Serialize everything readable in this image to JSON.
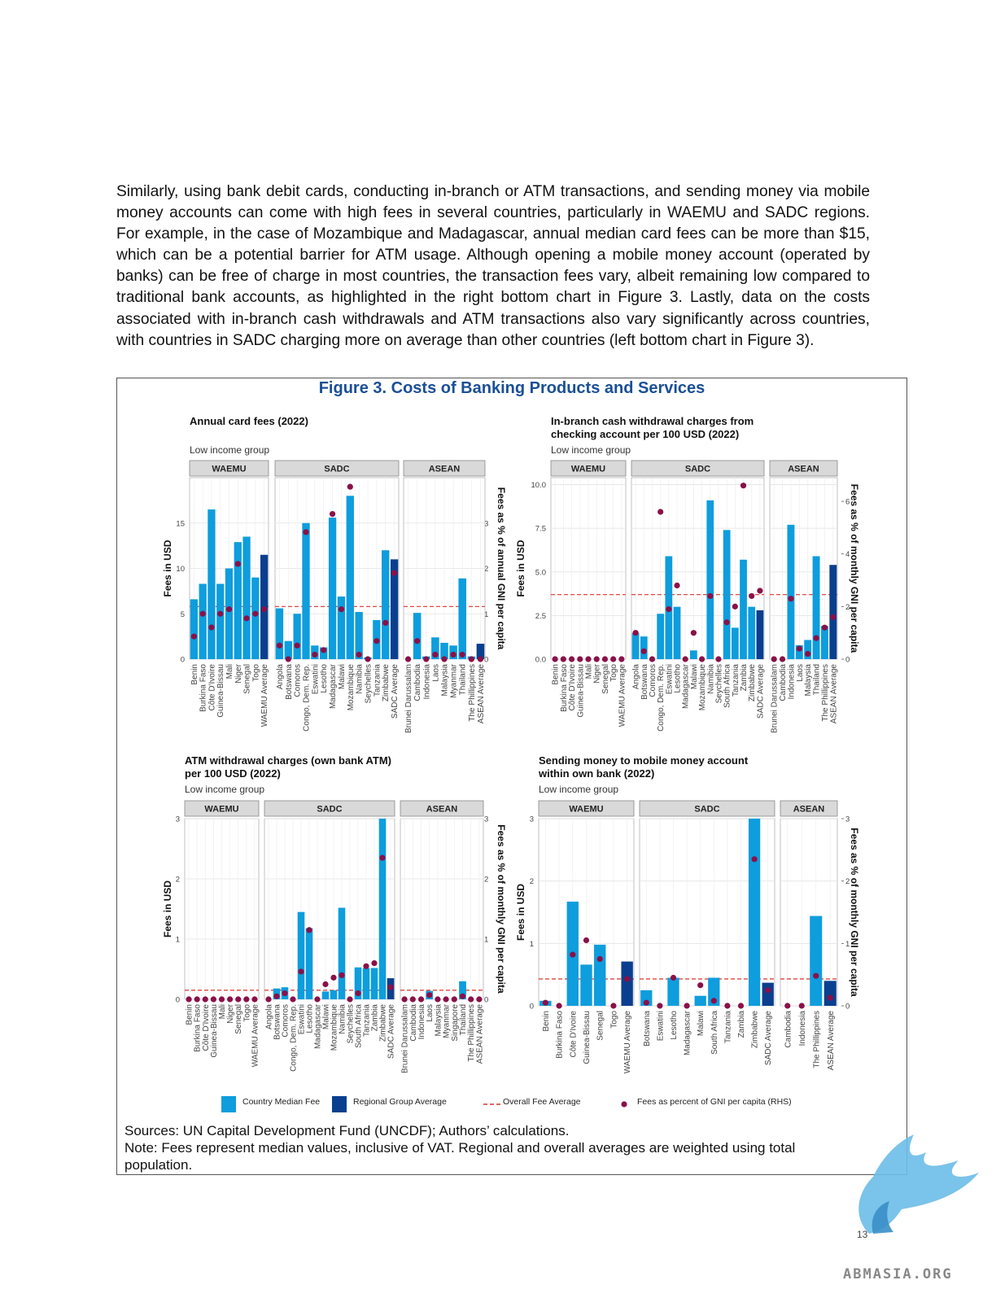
{
  "paragraph": "Similarly, using bank debit cards, conducting in-branch or ATM transactions, and sending money via mobile money accounts can come with high fees in several countries, particularly in WAEMU and SADC regions. For example, in the case of Mozambique and Madagascar, annual median card fees can be more than $15, which can be a potential barrier for ATM usage. Although opening a mobile money account (operated by banks) can be free of charge in most countries, the transaction fees vary, albeit remaining low compared to traditional bank accounts, as highlighted in the right bottom chart in Figure 3. Lastly, data on the costs associated with in-branch cash withdrawals and ATM transactions also vary significantly across countries, with countries in SADC charging more on average than other countries (left bottom chart in Figure 3).",
  "figure_title": "Figure 3. Costs of Banking Products and Services",
  "legend": {
    "country_median": "Country Median Fee",
    "regional_average": "Regional Group Average",
    "overall_average": "Overall Fee Average",
    "gni_percent": "Fees as percent of GNI per capita (RHS)"
  },
  "colors": {
    "country_bar": "#0e9ddd",
    "regional_bar": "#0a3f8f",
    "dot": "#8a1048",
    "avg_line": "#d9342b",
    "strip": "#d9d9d9",
    "title": "#1a4f96"
  },
  "sources": "Sources: UN Capital Development Fund (UNCDF); Authors’ calculations.",
  "note": "Note: Fees represent median values, inclusive of VAT. Regional and overall averages are weighted using total population.",
  "page_number": "13",
  "watermark_text": "ABMASIA.ORG",
  "chart_data": [
    {
      "type": "bar",
      "title": [
        "Annual card fees (2022)"
      ],
      "subtitle": "Low income group",
      "ylabel": "Fees in USD",
      "y2label": "Fees as % of annual GNI per capita",
      "ylim": [
        0,
        20
      ],
      "yticks": [
        0,
        5,
        10,
        15
      ],
      "y2lim": [
        0,
        4
      ],
      "y2ticks": [
        0,
        1,
        2,
        3
      ],
      "overall_average": 5.8,
      "panels": [
        {
          "name": "WAEMU",
          "categories": [
            "Benin",
            "Burkina Faso",
            "Côte D'Ivoire",
            "Guinea-Bissau",
            "Mali",
            "Niger",
            "Senegal",
            "Togo",
            "WAEMU Average"
          ],
          "values": [
            6.6,
            8.3,
            16.5,
            8.3,
            10.0,
            12.9,
            13.5,
            9.0,
            11.5
          ],
          "rhs": [
            0.5,
            1.0,
            0.7,
            1.0,
            1.1,
            2.1,
            0.9,
            1.0,
            1.1
          ]
        },
        {
          "name": "SADC",
          "categories": [
            "Angola",
            "Botswana",
            "Comoros",
            "Congo, Dem. Rep.",
            "Eswatini",
            "Lesotho",
            "Madagascar",
            "Malawi",
            "Mozambique",
            "Namibia",
            "Seychelles",
            "Tanzania",
            "Zimbabwe",
            "SADC Average"
          ],
          "values": [
            5.6,
            2.0,
            5.0,
            15.0,
            1.5,
            1.3,
            15.6,
            6.9,
            18.0,
            5.2,
            0.2,
            4.3,
            12.0,
            11.0
          ],
          "rhs": [
            0.3,
            0.0,
            0.3,
            2.8,
            0.1,
            0.2,
            3.2,
            1.1,
            3.8,
            0.1,
            0.0,
            0.4,
            0.8,
            1.9
          ]
        },
        {
          "name": "ASEAN",
          "categories": [
            "Brunei Darussalam",
            "Cambodia",
            "Indonesia",
            "Laos",
            "Malaysia",
            "Myanmar",
            "Thailand",
            "The Phillippines",
            "ASEAN Average"
          ],
          "values": [
            0.0,
            5.1,
            0.3,
            2.4,
            1.8,
            1.5,
            8.9,
            0.3,
            1.7
          ],
          "rhs": [
            0.0,
            0.4,
            0.0,
            0.1,
            0.0,
            0.1,
            0.1,
            0.0,
            0.0
          ]
        }
      ]
    },
    {
      "type": "bar",
      "title": [
        "In-branch cash withdrawal charges from",
        "checking account per 100 USD (2022)"
      ],
      "subtitle": "Low income group",
      "ylabel": "Fees in USD",
      "y2label": "Fees as % of monthly GNI per capita",
      "ylim": [
        0,
        10.4
      ],
      "yticks": [
        0,
        2.5,
        5,
        7.5,
        10
      ],
      "ytick_labels": [
        "0.0",
        "2.5",
        "5.0",
        "7.5",
        "10.0"
      ],
      "y2lim": [
        0,
        6.9
      ],
      "y2ticks": [
        0,
        2,
        4,
        6
      ],
      "overall_average": 3.7,
      "panels": [
        {
          "name": "WAEMU",
          "categories": [
            "Benin",
            "Burkina Faso",
            "Côte D'Ivoire",
            "Guinea-Bissau",
            "Mali",
            "Niger",
            "Senegal",
            "Togo",
            "WAEMU Average"
          ],
          "values": [
            0,
            0,
            0,
            0,
            0,
            0,
            0,
            0,
            0
          ],
          "rhs": [
            0,
            0,
            0,
            0,
            0,
            0,
            0,
            0,
            0
          ]
        },
        {
          "name": "SADC",
          "categories": [
            "Angola",
            "Botswana",
            "Comoros",
            "Congo, Dem. Rep.",
            "Eswatini",
            "Lesotho",
            "Madagascar",
            "Malawi",
            "Mozambique",
            "Namibia",
            "Seychelles",
            "South Africa",
            "Tanzania",
            "Zambia",
            "Zimbabwe",
            "SADC Average"
          ],
          "values": [
            1.5,
            1.3,
            0.0,
            2.6,
            5.9,
            3.0,
            0.0,
            0.5,
            0.0,
            9.1,
            0.0,
            7.4,
            1.8,
            5.7,
            3.0,
            2.8
          ],
          "rhs": [
            1.0,
            0.3,
            0.0,
            5.6,
            1.9,
            2.8,
            0.0,
            1.0,
            0.0,
            2.4,
            0.0,
            1.4,
            2.0,
            6.6,
            2.4,
            2.6
          ]
        },
        {
          "name": "ASEAN",
          "categories": [
            "Brunei Darussalam",
            "Cambodia",
            "Indonesia",
            "Laos",
            "Malaysia",
            "Thailand",
            "The Phillippines",
            "ASEAN Average"
          ],
          "values": [
            0.0,
            0.0,
            7.7,
            0.8,
            1.1,
            5.9,
            1.9,
            5.4
          ],
          "rhs": [
            0.0,
            0.0,
            2.3,
            0.4,
            0.2,
            0.8,
            1.2,
            1.6
          ]
        }
      ]
    },
    {
      "type": "bar",
      "title": [
        "ATM withdrawal charges (own bank ATM)",
        "per 100 USD (2022)"
      ],
      "subtitle": "Low income group",
      "ylabel": "Fees in USD",
      "y2label": "Fees as % of monthly GNI per capita",
      "ylim": [
        0,
        3.0
      ],
      "yticks": [
        0,
        1,
        2,
        3
      ],
      "y2lim": [
        0,
        3.0
      ],
      "y2ticks": [
        0,
        1,
        2,
        3
      ],
      "overall_average": 0.15,
      "panels": [
        {
          "name": "WAEMU",
          "categories": [
            "Benin",
            "Burkina Faso",
            "Côte D'Ivoire",
            "Guinea-Bissau",
            "Mali",
            "Niger",
            "Senegal",
            "Togo",
            "WAEMU Average"
          ],
          "values": [
            0,
            0,
            0,
            0,
            0,
            0,
            0,
            0,
            0
          ],
          "rhs": [
            0,
            0,
            0,
            0,
            0,
            0,
            0,
            0,
            0
          ]
        },
        {
          "name": "SADC",
          "categories": [
            "Angola",
            "Botswana",
            "Comoros",
            "Congo, Dem. Rep.",
            "Eswatini",
            "Lesotho",
            "Madagascar",
            "Malawi",
            "Mozambique",
            "Namibia",
            "Seychelles",
            "South Africa",
            "Tanzania",
            "Zambia",
            "Zimbabwe",
            "SADC Average"
          ],
          "values": [
            0.0,
            0.18,
            0.2,
            0.0,
            1.45,
            1.18,
            0.0,
            0.13,
            0.15,
            1.52,
            0.0,
            0.53,
            0.52,
            0.52,
            3.0,
            0.35
          ],
          "rhs": [
            0.0,
            0.05,
            0.1,
            0.0,
            0.46,
            1.15,
            0.0,
            0.25,
            0.36,
            0.4,
            0.0,
            0.1,
            0.55,
            0.6,
            2.35,
            0.2
          ]
        },
        {
          "name": "ASEAN",
          "categories": [
            "Brunei Darussalam",
            "Cambodia",
            "Indonesia",
            "Laos",
            "Malaysia",
            "Myanmar",
            "Singapore",
            "Thailand",
            "The Phillippines",
            "ASEAN Average"
          ],
          "values": [
            0.0,
            0.0,
            0.0,
            0.14,
            0.0,
            0.0,
            0.0,
            0.3,
            0.0,
            0.0
          ],
          "rhs": [
            0.0,
            0.0,
            0.0,
            0.07,
            0.0,
            0.0,
            0.0,
            0.05,
            0.0,
            0.0
          ]
        }
      ]
    },
    {
      "type": "bar",
      "title": [
        "Sending money to mobile money account",
        "within own bank (2022)"
      ],
      "subtitle": "Low income group",
      "ylabel": "Fees in USD",
      "y2label": "Fees as % of monthly GNI per capita",
      "ylim": [
        0,
        3.0
      ],
      "yticks": [
        0,
        1,
        2,
        3
      ],
      "y2lim": [
        0,
        3.0
      ],
      "y2ticks": [
        0,
        1,
        2,
        3
      ],
      "overall_average": 0.43,
      "panels": [
        {
          "name": "WAEMU",
          "categories": [
            "Benin",
            "Burkina Faso",
            "Côte D'Ivoire",
            "Guinea-Bissau",
            "Senegal",
            "Togo",
            "WAEMU Average"
          ],
          "values": [
            0.08,
            0.0,
            1.67,
            0.66,
            0.98,
            0.0,
            0.71
          ],
          "rhs": [
            0.05,
            0.0,
            0.82,
            1.05,
            0.75,
            0.0,
            0.43
          ]
        },
        {
          "name": "SADC",
          "categories": [
            "Botswana",
            "Eswatini",
            "Lesotho",
            "Madagascar",
            "Malawi",
            "South Africa",
            "Tanzania",
            "Zambia",
            "Zimbabwe",
            "SADC Average"
          ],
          "values": [
            0.25,
            0.0,
            0.45,
            0.0,
            0.16,
            0.45,
            0.0,
            0.0,
            3.0,
            0.37
          ],
          "rhs": [
            0.05,
            0.0,
            0.45,
            0.0,
            0.33,
            0.08,
            0.0,
            0.0,
            2.35,
            0.25
          ]
        },
        {
          "name": "ASEAN",
          "categories": [
            "Cambodia",
            "Indonesia",
            "The Phillippines",
            "ASEAN Average"
          ],
          "values": [
            0.0,
            0.0,
            1.44,
            0.4
          ],
          "rhs": [
            0.0,
            0.0,
            0.48,
            0.13
          ]
        }
      ]
    }
  ]
}
